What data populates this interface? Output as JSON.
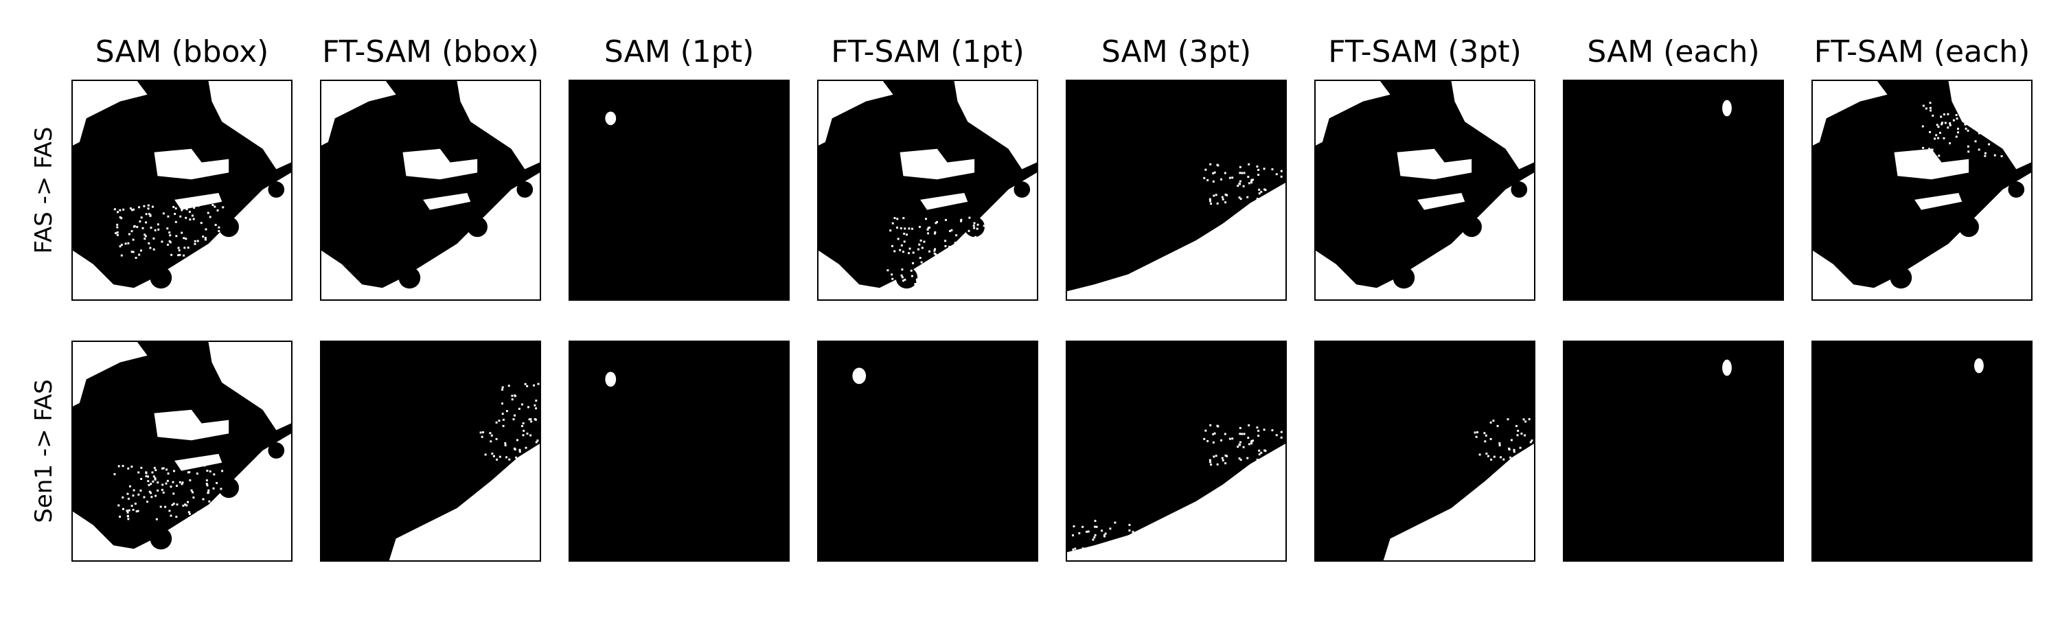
{
  "figure": {
    "columns": [
      {
        "title": "SAM (bbox)"
      },
      {
        "title": "FT-SAM (bbox)"
      },
      {
        "title": "SAM (1pt)"
      },
      {
        "title": "FT-SAM (1pt)"
      },
      {
        "title": "SAM (3pt)"
      },
      {
        "title": "FT-SAM (3pt)"
      },
      {
        "title": "SAM (each)"
      },
      {
        "title": "FT-SAM (each)"
      }
    ],
    "rows": [
      {
        "label": "FAS -> FAS"
      },
      {
        "label": "Sen1 -> FAS"
      }
    ],
    "colors": {
      "mask": "#ffffff",
      "background": "#000000"
    }
  }
}
